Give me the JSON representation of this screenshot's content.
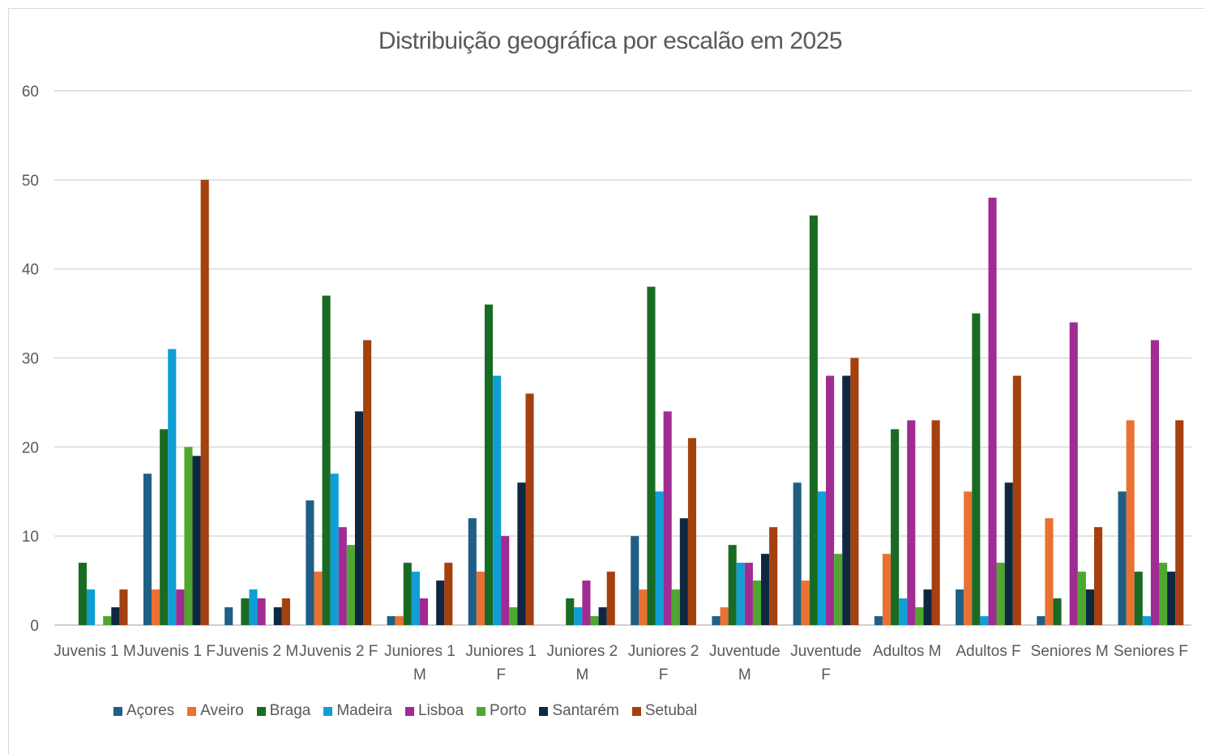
{
  "chart_data": {
    "type": "bar",
    "title": "Distribuição geográfica por escalão em 2025",
    "xlabel": "",
    "ylabel": "",
    "ylim": [
      0,
      60
    ],
    "yticks": [
      0,
      10,
      20,
      30,
      40,
      50,
      60
    ],
    "grid": true,
    "legend_position": "bottom",
    "categories": [
      [
        "Juvenis 1 M"
      ],
      [
        "Juvenis 1 F"
      ],
      [
        "Juvenis 2 M"
      ],
      [
        "Juvenis 2 F"
      ],
      [
        "Juniores 1",
        "M"
      ],
      [
        "Juniores 1",
        "F"
      ],
      [
        "Juniores 2",
        "M"
      ],
      [
        "Juniores 2",
        "F"
      ],
      [
        "Juventude",
        "M"
      ],
      [
        "Juventude",
        "F"
      ],
      [
        "Adultos M"
      ],
      [
        "Adultos F"
      ],
      [
        "Seniores M"
      ],
      [
        "Seniores F"
      ]
    ],
    "series": [
      {
        "name": "Açores",
        "color": "#1f5f86",
        "values": [
          0,
          17,
          2,
          14,
          1,
          12,
          0,
          10,
          1,
          16,
          1,
          4,
          1,
          15
        ]
      },
      {
        "name": "Aveiro",
        "color": "#e97132",
        "values": [
          0,
          4,
          0,
          6,
          1,
          6,
          0,
          4,
          2,
          5,
          8,
          15,
          12,
          23
        ]
      },
      {
        "name": "Braga",
        "color": "#196b24",
        "values": [
          7,
          22,
          3,
          37,
          7,
          36,
          3,
          38,
          9,
          46,
          22,
          35,
          3,
          6
        ]
      },
      {
        "name": "Madeira",
        "color": "#0f9ed5",
        "values": [
          4,
          31,
          4,
          17,
          6,
          28,
          2,
          15,
          7,
          15,
          3,
          1,
          0,
          1
        ]
      },
      {
        "name": "Lisboa",
        "color": "#a02b93",
        "values": [
          0,
          4,
          3,
          11,
          3,
          10,
          5,
          24,
          7,
          28,
          23,
          48,
          34,
          32
        ]
      },
      {
        "name": "Porto",
        "color": "#4ea72e",
        "values": [
          1,
          20,
          0,
          9,
          0,
          2,
          1,
          4,
          5,
          8,
          2,
          7,
          6,
          7
        ]
      },
      {
        "name": "Santarém",
        "color": "#0e2841",
        "values": [
          2,
          19,
          2,
          24,
          5,
          16,
          2,
          12,
          8,
          28,
          4,
          16,
          4,
          6
        ]
      },
      {
        "name": "Setubal",
        "color": "#a5400f",
        "values": [
          4,
          50,
          3,
          32,
          7,
          26,
          6,
          21,
          11,
          30,
          23,
          28,
          11,
          23
        ]
      }
    ]
  }
}
